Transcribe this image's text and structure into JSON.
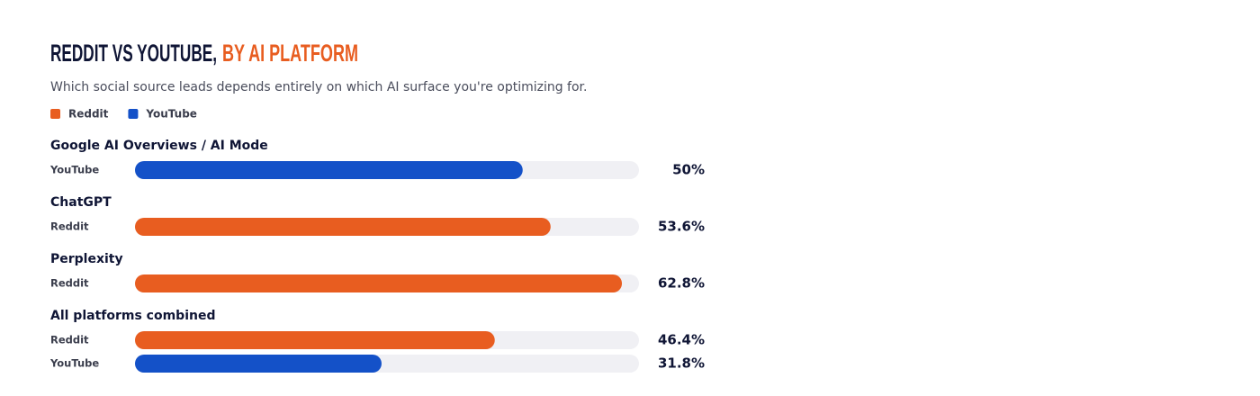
{
  "chart_data": {
    "type": "bar",
    "orientation": "horizontal",
    "title": "REDDIT VS YOUTUBE,",
    "title_accent": "BY AI PLATFORM",
    "subtitle": "Which social source leads depends entirely on which AI surface you're optimizing for.",
    "series": [
      {
        "name": "Reddit",
        "color": "#e85d20"
      },
      {
        "name": "YouTube",
        "color": "#1451c8"
      }
    ],
    "xlim": [
      0,
      65
    ],
    "groups": [
      {
        "name": "Google AI Overviews / AI Mode",
        "labels": [
          "YouTube"
        ],
        "values": [
          50
        ],
        "value_labels": [
          "50%"
        ]
      },
      {
        "name": "ChatGPT",
        "labels": [
          "Reddit"
        ],
        "values": [
          53.6
        ],
        "value_labels": [
          "53.6%"
        ]
      },
      {
        "name": "Perplexity",
        "labels": [
          "Reddit"
        ],
        "values": [
          62.8
        ],
        "value_labels": [
          "62.8%"
        ]
      },
      {
        "name": "All platforms combined",
        "labels": [
          "Reddit",
          "YouTube"
        ],
        "values": [
          46.4,
          31.8
        ],
        "value_labels": [
          "46.4%",
          "31.8%"
        ]
      }
    ]
  }
}
